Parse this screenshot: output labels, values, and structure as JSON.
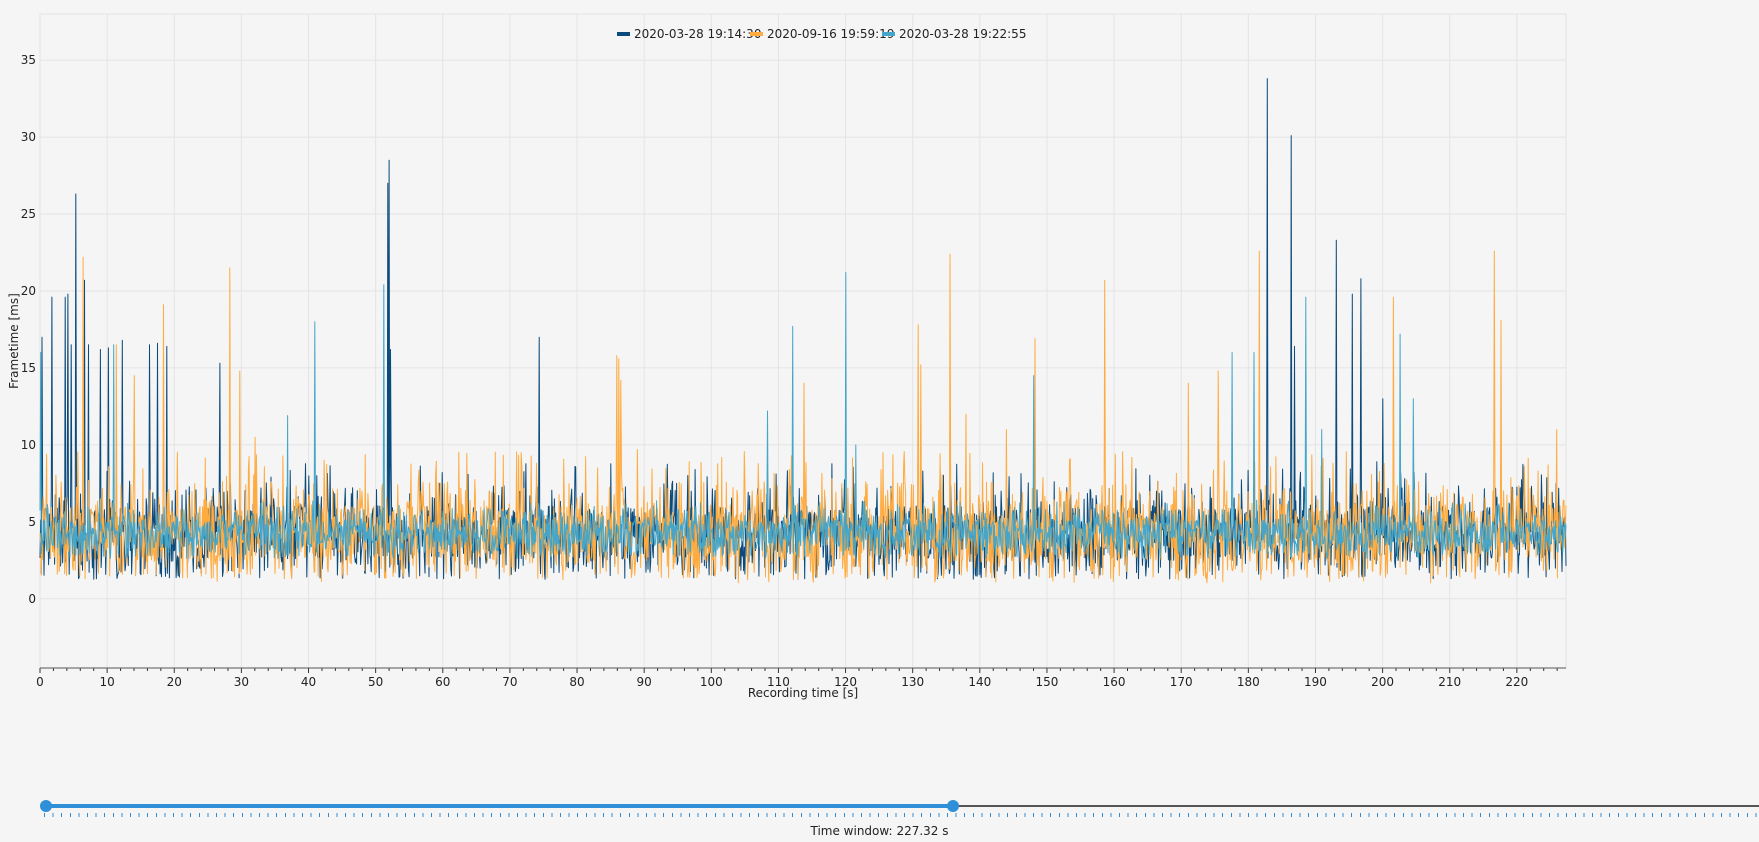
{
  "chart_data": {
    "type": "line",
    "title": "",
    "xlabel": "Recording time [s]",
    "ylabel": "Frametime [ms]",
    "xlim": [
      0,
      227.32
    ],
    "ylim": [
      -4.5,
      38
    ],
    "xticks": [
      0,
      10,
      20,
      30,
      40,
      50,
      60,
      70,
      80,
      90,
      100,
      110,
      120,
      130,
      140,
      150,
      160,
      170,
      180,
      190,
      200,
      210,
      220
    ],
    "yticks": [
      0,
      5,
      10,
      15,
      20,
      25,
      30,
      35
    ],
    "grid": true,
    "legend_position": "top-center",
    "series": [
      {
        "name": "2020-03-28 19:14:30",
        "color": "#0b4a7a",
        "baseline": 4.3,
        "band": [
          1.3,
          8.9
        ],
        "spikes": [
          [
            0.3,
            17.0
          ],
          [
            1.8,
            19.6
          ],
          [
            3.8,
            19.6
          ],
          [
            4.2,
            19.8
          ],
          [
            4.6,
            16.5
          ],
          [
            5.3,
            26.3
          ],
          [
            6.6,
            20.7
          ],
          [
            7.2,
            16.5
          ],
          [
            9.0,
            16.2
          ],
          [
            10.2,
            16.3
          ],
          [
            12.3,
            16.8
          ],
          [
            16.3,
            16.5
          ],
          [
            17.5,
            16.6
          ],
          [
            18.9,
            16.4
          ],
          [
            26.8,
            15.3
          ],
          [
            51.8,
            27.0
          ],
          [
            52.0,
            28.5
          ],
          [
            52.2,
            16.2
          ],
          [
            74.4,
            17.0
          ],
          [
            182.8,
            33.8
          ],
          [
            186.4,
            30.1
          ],
          [
            186.9,
            16.4
          ],
          [
            193.1,
            23.3
          ],
          [
            195.5,
            19.8
          ],
          [
            196.8,
            20.8
          ],
          [
            200.0,
            13.0
          ]
        ]
      },
      {
        "name": "2020-09-16 19:59:19",
        "color": "#ffab40",
        "baseline": 4.3,
        "band": [
          1.3,
          9.6
        ],
        "spikes": [
          [
            6.4,
            22.2
          ],
          [
            11.4,
            16.5
          ],
          [
            14.0,
            14.5
          ],
          [
            18.4,
            19.1
          ],
          [
            28.3,
            21.5
          ],
          [
            29.8,
            14.8
          ],
          [
            32.0,
            10.5
          ],
          [
            85.9,
            15.8
          ],
          [
            86.2,
            15.6
          ],
          [
            86.5,
            14.2
          ],
          [
            89.0,
            9.7
          ],
          [
            113.8,
            14.0
          ],
          [
            130.8,
            17.8
          ],
          [
            131.2,
            15.2
          ],
          [
            135.6,
            22.4
          ],
          [
            137.9,
            12.0
          ],
          [
            144.0,
            11.0
          ],
          [
            148.2,
            16.9
          ],
          [
            158.6,
            20.7
          ],
          [
            171.1,
            14.0
          ],
          [
            175.5,
            14.8
          ],
          [
            181.6,
            22.6
          ],
          [
            201.6,
            19.6
          ],
          [
            216.6,
            22.6
          ],
          [
            217.6,
            18.1
          ],
          [
            225.9,
            11.0
          ]
        ]
      },
      {
        "name": "2020-03-28 19:22:55",
        "color": "#45a6c9",
        "baseline": 4.3,
        "band": [
          2.6,
          6.4
        ],
        "spikes": [
          [
            0.1,
            16.0
          ],
          [
            11.0,
            16.5
          ],
          [
            36.9,
            11.9
          ],
          [
            40.9,
            18.0
          ],
          [
            51.2,
            20.4
          ],
          [
            108.4,
            12.2
          ],
          [
            112.1,
            17.7
          ],
          [
            120.0,
            21.2
          ],
          [
            121.5,
            10.0
          ],
          [
            148.0,
            14.5
          ],
          [
            177.6,
            16.0
          ],
          [
            180.8,
            16.0
          ],
          [
            188.6,
            19.6
          ],
          [
            190.9,
            11.0
          ],
          [
            202.6,
            17.2
          ],
          [
            204.6,
            13.0
          ]
        ]
      }
    ],
    "time_window_label": "Time window:",
    "time_window_value": "227.32 s",
    "slider_position": 0.53
  }
}
